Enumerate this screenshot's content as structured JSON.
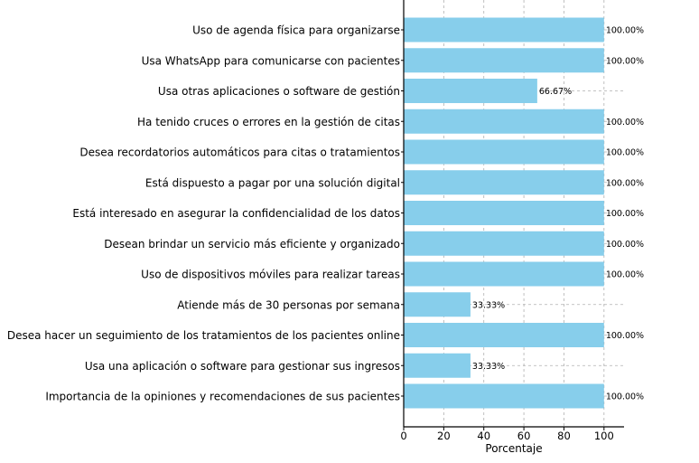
{
  "chart_data": {
    "type": "bar",
    "orientation": "horizontal",
    "categories": [
      "Uso de agenda física para organizarse",
      "Usa WhatsApp para comunicarse con pacientes",
      "Usa otras aplicaciones o software de gestión",
      "Ha tenido cruces o errores en la gestión de citas",
      "Desea recordatorios automáticos para citas o tratamientos",
      "Está dispuesto a pagar por una solución digital",
      "Está interesado en asegurar la confidencialidad de los datos",
      "Desean brindar un servicio más eficiente y organizado",
      "Uso de dispositivos móviles para realizar tareas",
      "Atiende más de 30 personas por semana",
      "Desea hacer un seguimiento de los tratamientos de los pacientes online",
      "Usa una aplicación o software para gestionar sus ingresos",
      "Importancia de la opiniones y recomendaciones de sus pacientes"
    ],
    "values": [
      100,
      100,
      66.67,
      100,
      100,
      100,
      100,
      100,
      100,
      33.33,
      100,
      33.33,
      100
    ],
    "value_labels": [
      "100.00%",
      "100.00%",
      "66.67%",
      "100.00%",
      "100.00%",
      "100.00%",
      "100.00%",
      "100.00%",
      "100.00%",
      "33.33%",
      "100.00%",
      "33.33%",
      "100.00%"
    ],
    "title": "",
    "xlabel": "Porcentaje",
    "ylabel": "",
    "xlim": [
      0,
      110
    ],
    "xticks": [
      0,
      20,
      40,
      60,
      80,
      100
    ],
    "xtick_labels": [
      "0",
      "20",
      "40",
      "60",
      "80",
      "100"
    ],
    "grid": true,
    "bar_color": "#87ceeb",
    "axis_color": "#000000",
    "grid_color": "#b0b0b0"
  }
}
